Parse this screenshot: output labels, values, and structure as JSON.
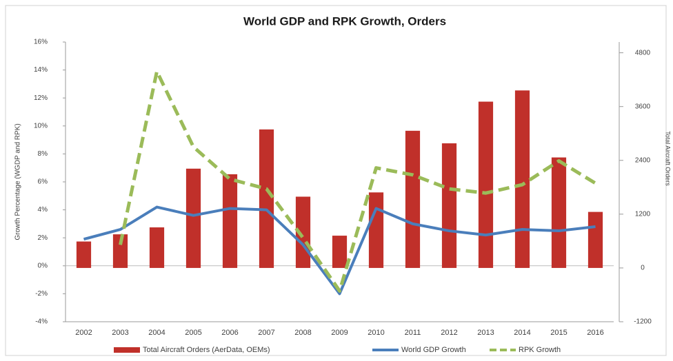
{
  "chart_data": {
    "type": "bar-line",
    "title": "World GDP and RPK Growth, Orders",
    "ylabel": "Growth Percentage (WGDP and RPK)",
    "y2label": "Total Aircraft Orders",
    "categories": [
      "2002",
      "2003",
      "2004",
      "2005",
      "2006",
      "2007",
      "2008",
      "2009",
      "2010",
      "2011",
      "2012",
      "2013",
      "2014",
      "2015",
      "2016"
    ],
    "ylim": [
      -4,
      16
    ],
    "yticks": [
      {
        "value": -4,
        "label": "-4%"
      },
      {
        "value": -2,
        "label": "-2%"
      },
      {
        "value": 0,
        "label": "0%"
      },
      {
        "value": 2,
        "label": "2%"
      },
      {
        "value": 4,
        "label": "4%"
      },
      {
        "value": 6,
        "label": "6%"
      },
      {
        "value": 8,
        "label": "8%"
      },
      {
        "value": 10,
        "label": "10%"
      },
      {
        "value": 12,
        "label": "12%"
      },
      {
        "value": 14,
        "label": "14%"
      },
      {
        "value": 16,
        "label": "16%"
      }
    ],
    "y2lim": [
      -1200,
      5040
    ],
    "y2ticks": [
      -1200,
      0,
      1200,
      2400,
      3600,
      4800
    ],
    "series": [
      {
        "name": "Total Aircraft Orders (AerData, OEMs)",
        "type": "bar",
        "axis": "y2",
        "color": "#c0302a",
        "values": [
          590,
          750,
          905,
          2215,
          2090,
          3090,
          1590,
          720,
          1685,
          3060,
          2780,
          3710,
          3960,
          2465,
          1250
        ]
      },
      {
        "name": "World GDP Growth",
        "type": "line",
        "color": "#4a7ebb",
        "line_style": "solid",
        "values": [
          1.9,
          2.6,
          4.2,
          3.6,
          4.1,
          4.0,
          1.5,
          -2.0,
          4.1,
          3.0,
          2.5,
          2.2,
          2.6,
          2.5,
          2.8
        ]
      },
      {
        "name": "RPK Growth",
        "type": "line",
        "color": "#9bbb59",
        "line_style": "dashed",
        "values": [
          null,
          1.5,
          13.9,
          8.5,
          6.2,
          5.5,
          2.0,
          -1.8,
          7.0,
          6.5,
          5.5,
          5.2,
          5.8,
          7.5,
          5.9
        ]
      }
    ]
  }
}
